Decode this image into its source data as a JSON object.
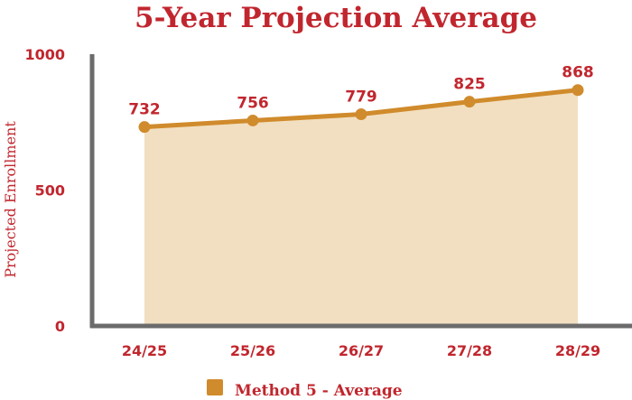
{
  "chart_data": {
    "type": "area",
    "title": "5-Year Projection Average",
    "xlabel": "",
    "ylabel": "Projected Enrollment",
    "categories": [
      "24/25",
      "25/26",
      "26/27",
      "27/28",
      "28/29"
    ],
    "series": [
      {
        "name": "Method 5 - Average",
        "values": [
          732,
          756,
          779,
          825,
          868
        ]
      }
    ],
    "ylim": [
      0,
      1000
    ],
    "yticks": [
      "0",
      "500",
      "1000"
    ],
    "grid": false,
    "legend_position": "bottom"
  },
  "colors": {
    "title": "#c1262e",
    "line": "#d08b2c",
    "fill": "#f2dfc1",
    "axis": "#6b6b6b",
    "legend_swatch": "#d08b2c"
  }
}
